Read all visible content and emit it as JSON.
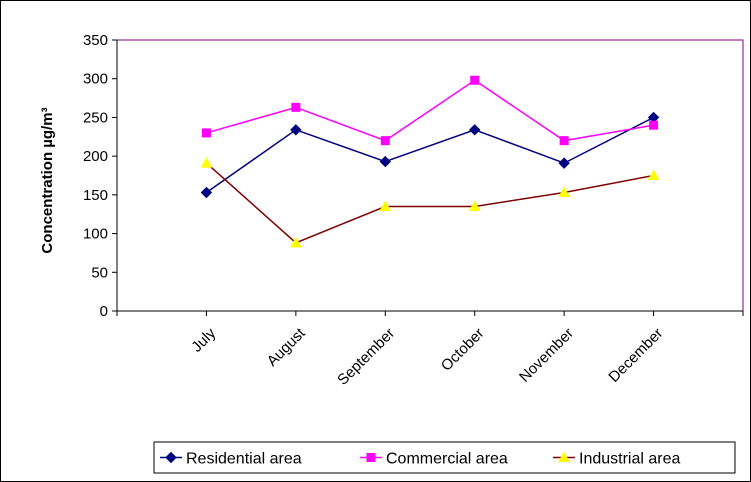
{
  "chart_data": {
    "type": "line",
    "title": "",
    "xlabel": "",
    "ylabel": "Concentration  µg/m³",
    "categories": [
      "July",
      "August",
      "September",
      "October",
      "November",
      "December"
    ],
    "ylim": [
      0,
      350
    ],
    "yticks": [
      0,
      50,
      100,
      150,
      200,
      250,
      300,
      350
    ],
    "grid": false,
    "legend_position": "bottom",
    "series": [
      {
        "name": "Residential area",
        "values": [
          153,
          234,
          193,
          234,
          191,
          250
        ],
        "color": "#000080",
        "marker": "diamond"
      },
      {
        "name": "Commercial area",
        "values": [
          230,
          263,
          220,
          298,
          220,
          240
        ],
        "color": "#ff00ff",
        "marker": "square"
      },
      {
        "name": "Industrial area",
        "values": [
          191,
          88,
          135,
          135,
          153,
          175
        ],
        "color": "#800000",
        "marker_color": "#ffff00",
        "marker": "triangle"
      }
    ],
    "plot_border_color": "#800080"
  }
}
